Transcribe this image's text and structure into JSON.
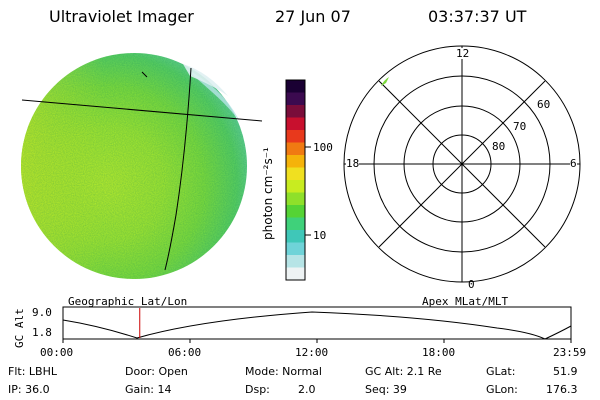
{
  "header": {
    "instrument": "Ultraviolet Imager",
    "date": "27 Jun 07",
    "time": "03:37:37 UT"
  },
  "colorbar": {
    "unit_label": "photon cm⁻²s⁻¹",
    "ticks": [
      "100",
      "10"
    ],
    "colors": [
      "#1a0033",
      "#3b0a4f",
      "#7a0d3a",
      "#c8102e",
      "#e8391c",
      "#f07a12",
      "#f5b30a",
      "#f0e020",
      "#c8ec20",
      "#8fe02a",
      "#55d335",
      "#3fd17a",
      "#3fc7b8",
      "#6fd3d8",
      "#b6e4e6",
      "#eef3f4"
    ]
  },
  "polar_plot": {
    "mlt_labels": {
      "top": "12",
      "left": "18",
      "right": "6",
      "bottom": "0"
    },
    "lat_labels": [
      "60",
      "70",
      "80"
    ]
  },
  "orbit_panel": {
    "left_label": "Geographic Lat/Lon",
    "right_label": "Apex MLat/MLT",
    "y_axis_label": "GC Alt",
    "y_ticks": [
      "9.0",
      "1.8"
    ],
    "x_ticks": [
      "00:00",
      "06:00",
      "12:00",
      "18:00",
      "23:59"
    ],
    "current_time_fraction": 0.1511,
    "marker_color": "#cc0000"
  },
  "info": {
    "flt": "Flt: LBHL",
    "ip": "IP: 36.0",
    "door": "Door: Open",
    "gain": "Gain: 14",
    "mode": "Mode: Normal",
    "dsp_label": "Dsp:",
    "dsp_value": "2.0",
    "gc_alt": "GC Alt: 2.1 Re",
    "seq": "Seq: 39",
    "glat_label": "GLat:",
    "glat_value": "51.9",
    "glon_label": "GLon:",
    "glon_value": "176.3"
  }
}
